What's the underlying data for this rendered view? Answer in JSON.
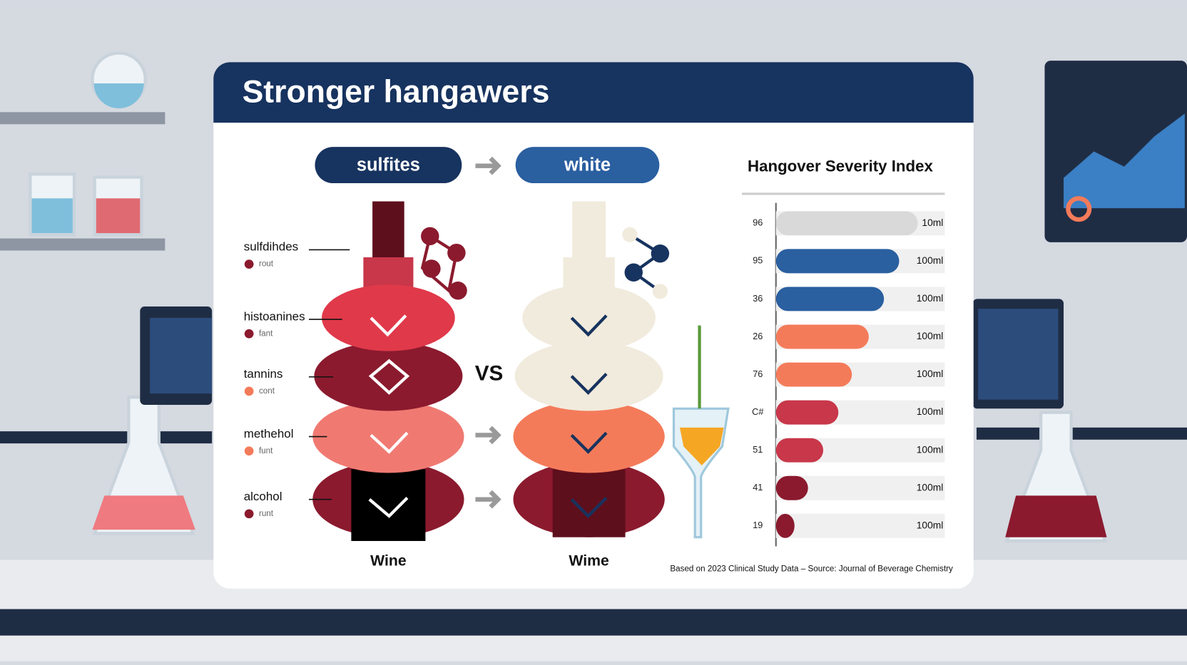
{
  "header": {
    "title": "Stronger hangawers"
  },
  "pills": [
    "sulfites",
    "white"
  ],
  "vs": "VS",
  "layers": [
    {
      "label": "sulfdihdes",
      "note": "rout"
    },
    {
      "label": "histoanines",
      "note": "fant"
    },
    {
      "label": "tannins",
      "note": "cont"
    },
    {
      "label": "methehol",
      "note": "funt"
    },
    {
      "label": "alcohol",
      "note": "runt"
    }
  ],
  "bottles": [
    "Wine",
    "Wime"
  ],
  "chart_data": {
    "type": "bar",
    "orientation": "horizontal",
    "title": "Hangover Severity Index",
    "categories": [
      "96",
      "95",
      "36",
      "26",
      "76",
      "C#",
      "51",
      "41",
      "19"
    ],
    "values": [
      84,
      73,
      64,
      55,
      45,
      37,
      28,
      19,
      11
    ],
    "xlim": [
      0,
      100
    ],
    "colors": [
      "#d9d9d9",
      "#2a5fa0",
      "#2a5fa0",
      "#f47b5a",
      "#f47b5a",
      "#c8374a",
      "#c8374a",
      "#8b1a2e",
      "#8b1a2e"
    ],
    "end_labels": [
      "10ml",
      "100ml",
      "100ml",
      "100ml",
      "100ml",
      "100ml",
      "100ml",
      "100ml",
      "100ml"
    ]
  },
  "footer": "Based on 2023 Clinical Study Data – Source: Journal of Beverage Chemistry"
}
